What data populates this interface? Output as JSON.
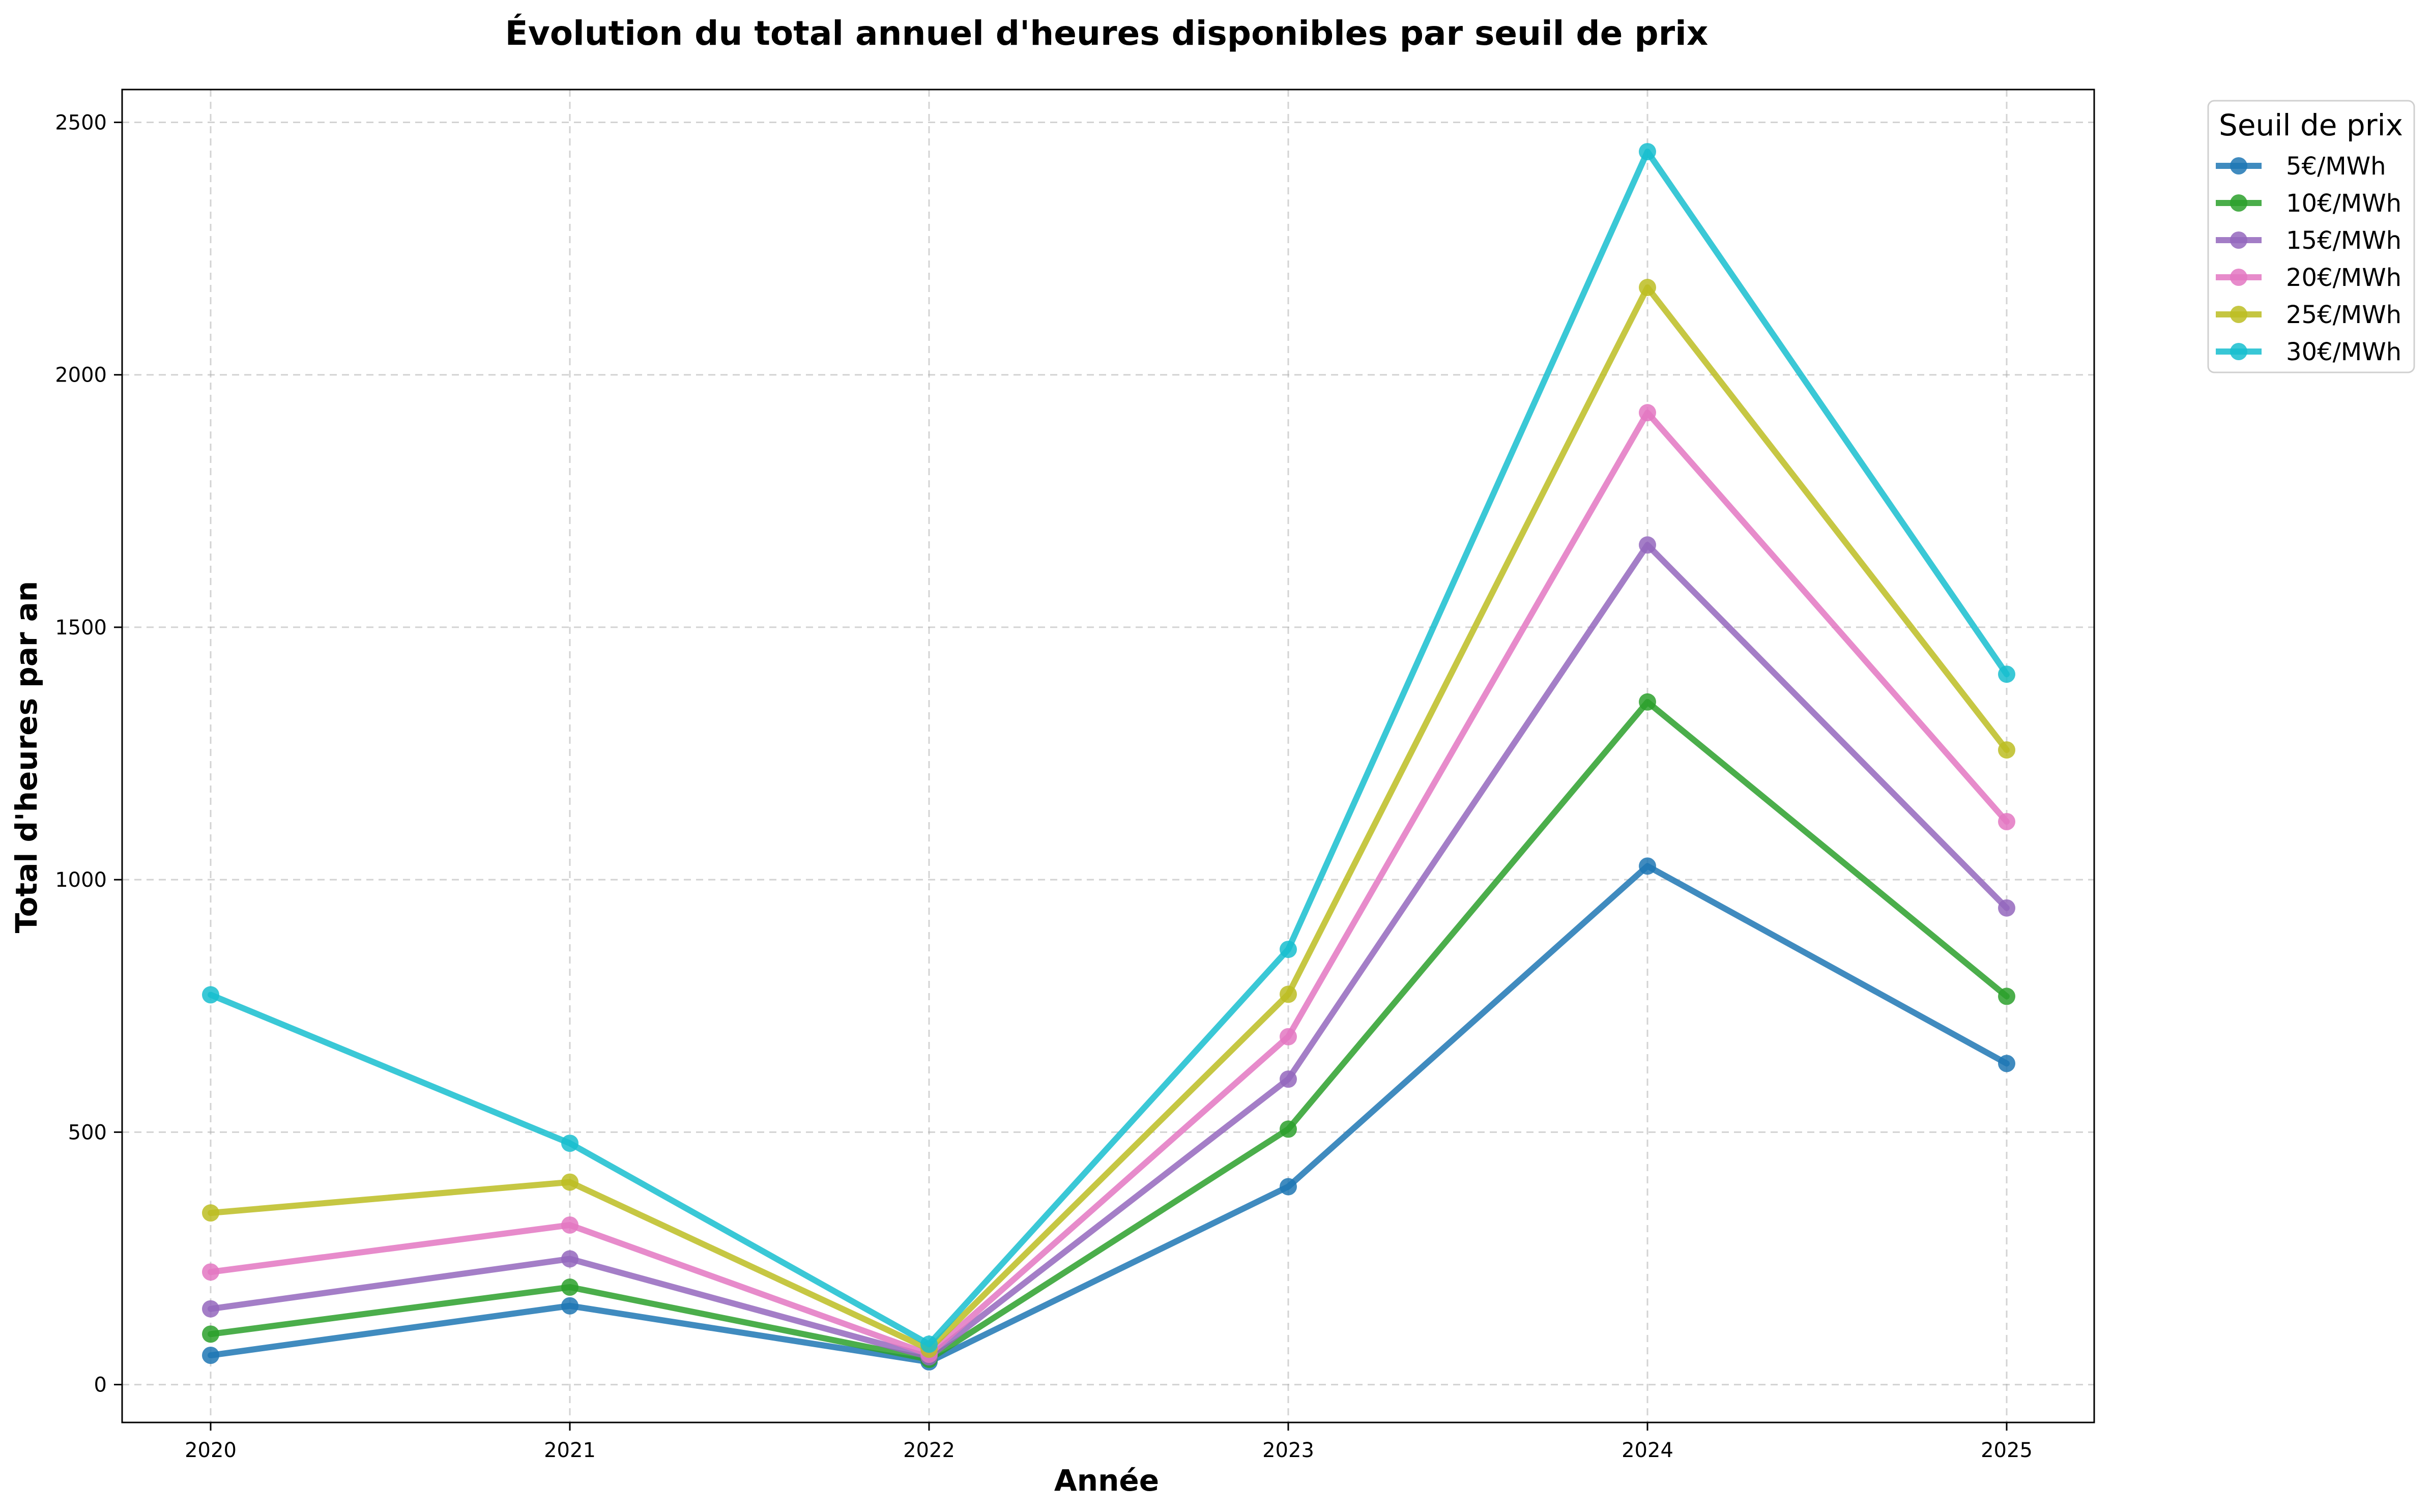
{
  "chart_data": {
    "type": "line",
    "title": "Évolution du total annuel d'heures disponibles par seuil de prix",
    "xlabel": "Année",
    "ylabel": "Total d'heures par an",
    "categories": [
      "2020",
      "2021",
      "2022",
      "2023",
      "2024",
      "2025"
    ],
    "ylim": [
      -75,
      2565
    ],
    "yticks": [
      0,
      500,
      1000,
      1500,
      2000,
      2500
    ],
    "grid": true,
    "legend": {
      "title": "Seuil de prix",
      "placement": "outside-top-right"
    },
    "series": [
      {
        "name": "5€/MWh",
        "color": "#1f77b4",
        "values": [
          58,
          156,
          45,
          392,
          1027,
          636
        ]
      },
      {
        "name": "10€/MWh",
        "color": "#2ca02c",
        "values": [
          100,
          193,
          50,
          506,
          1352,
          769
        ]
      },
      {
        "name": "15€/MWh",
        "color": "#9467bd",
        "values": [
          150,
          249,
          55,
          605,
          1663,
          944
        ]
      },
      {
        "name": "20€/MWh",
        "color": "#e377c2",
        "values": [
          223,
          316,
          60,
          689,
          1925,
          1115
        ]
      },
      {
        "name": "25€/MWh",
        "color": "#bcbd22",
        "values": [
          340,
          401,
          70,
          773,
          2173,
          1257
        ]
      },
      {
        "name": "30€/MWh",
        "color": "#17becf",
        "values": [
          772,
          478,
          80,
          862,
          2442,
          1407
        ]
      }
    ]
  }
}
